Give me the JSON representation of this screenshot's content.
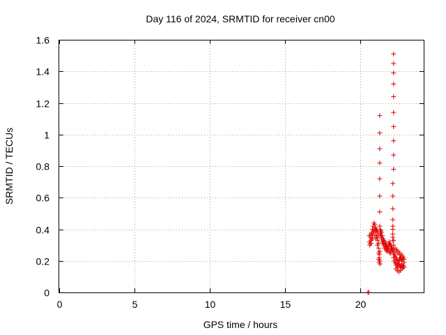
{
  "chart_data": {
    "type": "scatter",
    "title": "Day 116 of 2024, SRMTID for receiver cn00",
    "xlabel": "GPS time / hours",
    "ylabel": "SRMTID / TECUs",
    "xlim": [
      0,
      24.2
    ],
    "ylim": [
      0,
      1.6
    ],
    "xticks": [
      0,
      5,
      10,
      15,
      20
    ],
    "yticks": [
      0,
      0.2,
      0.4,
      0.6,
      0.8,
      1.0,
      1.2,
      1.4,
      1.6
    ],
    "xtick_labels": [
      "0",
      "5",
      "10",
      "15",
      "20"
    ],
    "ytick_labels": [
      "0",
      "0.2",
      "0.4",
      "0.6",
      "0.8",
      "1",
      "1.2",
      "1.4",
      "1.6"
    ],
    "grid": true,
    "marker": "+",
    "color": "#e00000",
    "series": [
      {
        "name": "SRMTID",
        "x": [
          20.5,
          20.55,
          20.6,
          20.65,
          20.7,
          20.75,
          20.8,
          20.85,
          20.9,
          20.95,
          21.0,
          21.05,
          21.1,
          21.15,
          21.2,
          20.6,
          20.65,
          20.7,
          20.75,
          20.8,
          20.85,
          20.9,
          20.95,
          21.0,
          21.05,
          21.1,
          21.15,
          21.2,
          20.62,
          20.72,
          20.82,
          20.92,
          21.02,
          21.12,
          21.2,
          21.22,
          21.25,
          21.28,
          21.3,
          21.25,
          21.28,
          21.22,
          21.25,
          21.3,
          21.35,
          21.4,
          21.45,
          21.5,
          21.55,
          21.6,
          21.65,
          21.7,
          21.75,
          21.8,
          21.85,
          21.9,
          21.95,
          22.0,
          22.05,
          22.1,
          22.15,
          21.3,
          21.35,
          21.4,
          21.45,
          21.5,
          21.55,
          21.6,
          21.65,
          21.7,
          21.75,
          21.8,
          21.85,
          21.9,
          21.95,
          22.0,
          22.05,
          22.1,
          21.32,
          21.42,
          21.52,
          21.62,
          21.72,
          21.82,
          21.92,
          22.02,
          21.28,
          21.28,
          21.28,
          21.28,
          21.28,
          21.28,
          21.28,
          21.28,
          22.15,
          22.15,
          22.15,
          22.15,
          22.15,
          22.15,
          22.15,
          22.15,
          22.15,
          22.2,
          22.2,
          22.2,
          22.2,
          22.2,
          22.2,
          22.2,
          22.2,
          22.2,
          22.2,
          22.2,
          22.2,
          22.2,
          22.2,
          22.2,
          22.25,
          22.3,
          22.35,
          22.4,
          22.45,
          22.5,
          22.55,
          22.6,
          22.65,
          22.7,
          22.75,
          22.8,
          22.85,
          22.9,
          22.25,
          22.3,
          22.35,
          22.4,
          22.45,
          22.5,
          22.55,
          22.6,
          22.65,
          22.7,
          22.75,
          22.8,
          22.85,
          22.9,
          22.3,
          22.4,
          22.5,
          22.6,
          22.7,
          22.8,
          22.9,
          22.35,
          22.45,
          22.55,
          22.65,
          22.75,
          22.85,
          22.3,
          22.4,
          22.5,
          22.6,
          22.7,
          22.8
        ],
        "y": [
          0.0,
          0.0,
          0.36,
          0.35,
          0.37,
          0.38,
          0.4,
          0.42,
          0.44,
          0.43,
          0.41,
          0.4,
          0.39,
          0.38,
          0.36,
          0.32,
          0.31,
          0.33,
          0.34,
          0.36,
          0.38,
          0.39,
          0.4,
          0.38,
          0.36,
          0.35,
          0.33,
          0.31,
          0.3,
          0.31,
          0.34,
          0.36,
          0.34,
          0.3,
          0.28,
          0.25,
          0.22,
          0.2,
          0.18,
          0.24,
          0.26,
          0.21,
          0.19,
          0.4,
          0.39,
          0.38,
          0.36,
          0.34,
          0.33,
          0.32,
          0.3,
          0.31,
          0.29,
          0.28,
          0.3,
          0.32,
          0.31,
          0.3,
          0.29,
          0.28,
          0.27,
          0.37,
          0.36,
          0.34,
          0.32,
          0.31,
          0.3,
          0.28,
          0.29,
          0.27,
          0.26,
          0.27,
          0.28,
          0.26,
          0.25,
          0.27,
          0.28,
          0.26,
          0.39,
          0.35,
          0.33,
          0.31,
          0.29,
          0.27,
          0.3,
          0.25,
          0.42,
          0.51,
          0.61,
          0.72,
          0.82,
          0.91,
          1.01,
          1.12,
          0.33,
          0.35,
          0.37,
          0.4,
          0.42,
          0.46,
          0.53,
          0.61,
          0.69,
          0.78,
          0.87,
          0.96,
          1.05,
          1.14,
          1.24,
          1.32,
          1.39,
          1.45,
          1.51,
          0.33,
          0.3,
          0.27,
          0.25,
          0.22,
          0.24,
          0.23,
          0.22,
          0.21,
          0.2,
          0.19,
          0.2,
          0.21,
          0.22,
          0.21,
          0.2,
          0.21,
          0.22,
          0.21,
          0.2,
          0.19,
          0.18,
          0.17,
          0.17,
          0.16,
          0.18,
          0.17,
          0.16,
          0.17,
          0.18,
          0.16,
          0.17,
          0.16,
          0.27,
          0.26,
          0.25,
          0.24,
          0.22,
          0.21,
          0.19,
          0.15,
          0.14,
          0.13,
          0.14,
          0.15,
          0.16,
          0.28,
          0.27,
          0.26,
          0.25,
          0.24,
          0.23
        ]
      }
    ]
  }
}
